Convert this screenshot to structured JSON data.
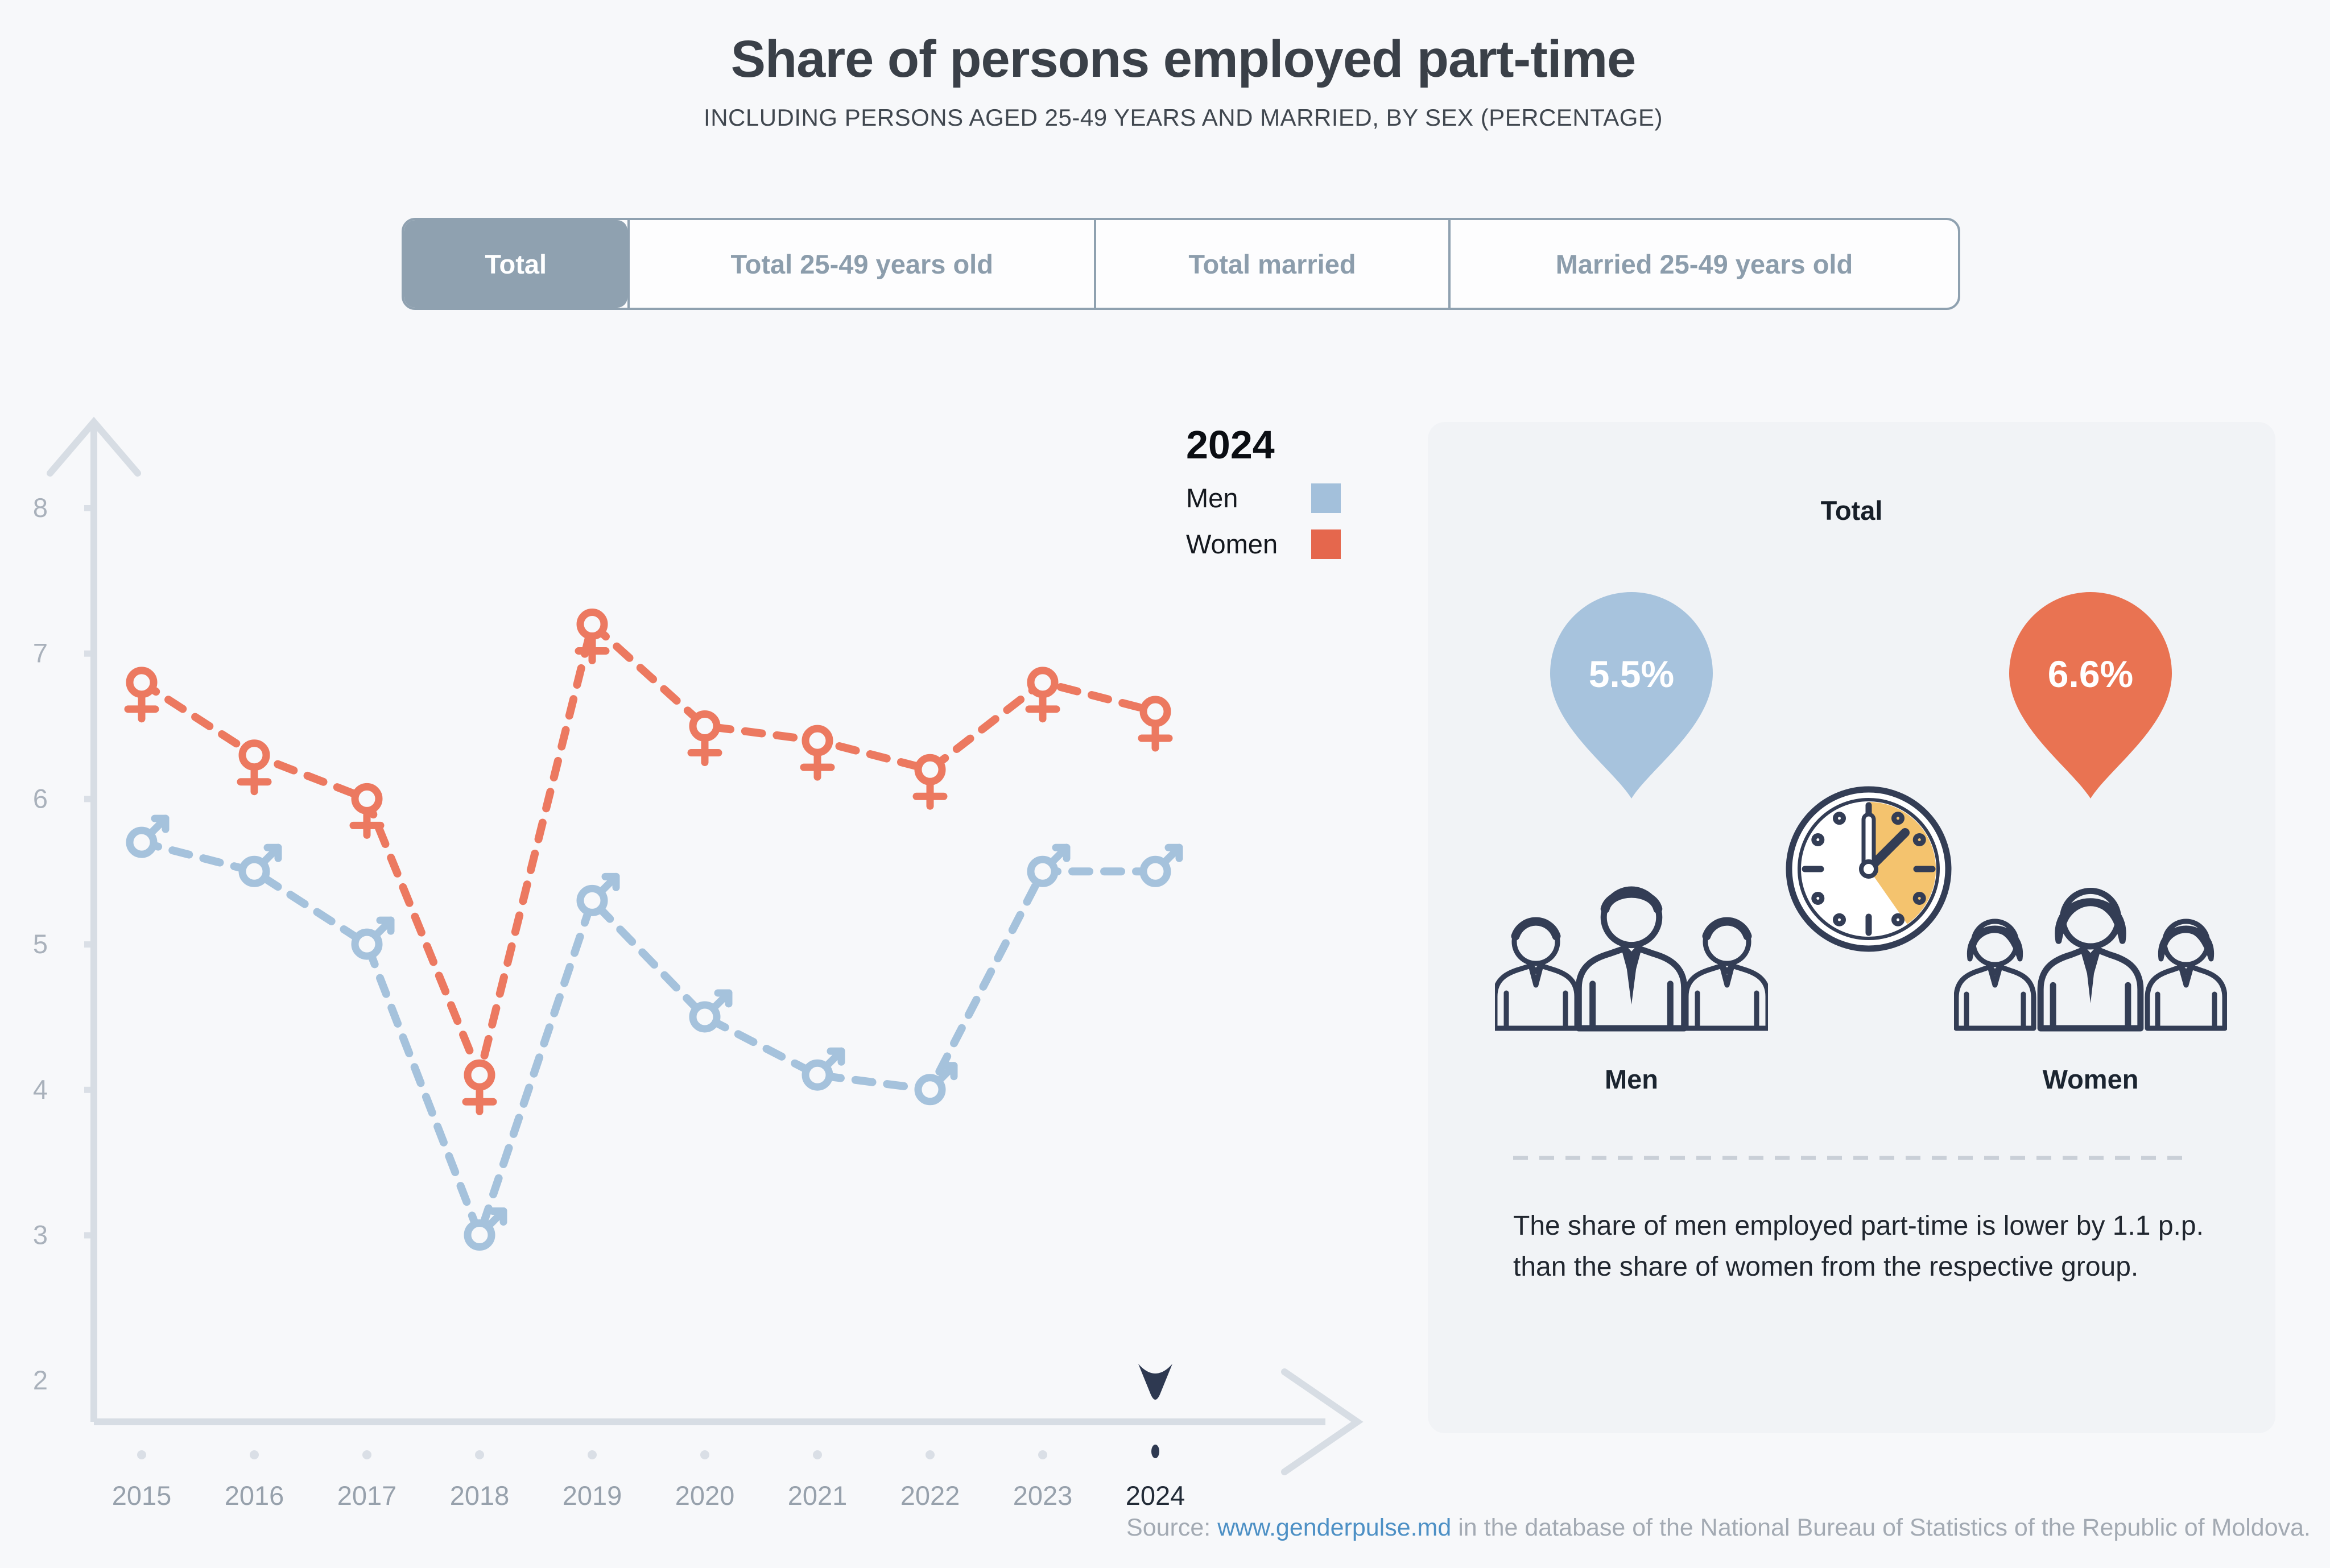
{
  "header": {
    "title": "Share of persons employed part-time",
    "subtitle": "INCLUDING PERSONS AGED 25-49 YEARS AND MARRIED, BY SEX (PERCENTAGE)"
  },
  "tabs": {
    "active_index": 0,
    "items": [
      {
        "label": "Total"
      },
      {
        "label": "Total 25-49 years old"
      },
      {
        "label": "Total married"
      },
      {
        "label": "Married 25-49 years old"
      }
    ]
  },
  "legend": {
    "year": "2024",
    "items": [
      {
        "label": "Men",
        "color": "#A3C0DB"
      },
      {
        "label": "Women",
        "color": "#E5674D"
      }
    ]
  },
  "chart_data": {
    "type": "line",
    "title": "Share of persons employed part-time, Total",
    "categories": [
      "2015",
      "2016",
      "2017",
      "2018",
      "2019",
      "2020",
      "2021",
      "2022",
      "2023",
      "2024"
    ],
    "selected_category": "2024",
    "series": [
      {
        "name": "Men",
        "marker": "male",
        "color": "#A5C2DC",
        "values": [
          5.7,
          5.5,
          5.0,
          3.0,
          5.3,
          4.5,
          4.1,
          4.0,
          5.5,
          5.5
        ]
      },
      {
        "name": "Women",
        "marker": "female",
        "color": "#EC7960",
        "values": [
          6.8,
          6.3,
          6.0,
          4.1,
          7.2,
          6.5,
          6.4,
          6.2,
          6.8,
          6.6
        ]
      }
    ],
    "ylim": [
      2,
      8
    ],
    "yticks": [
      8,
      7,
      6,
      5,
      4,
      3,
      2
    ],
    "grid": false,
    "line_style": "dashed",
    "legend_position": "top-right"
  },
  "panel": {
    "title": "Total",
    "stats": [
      {
        "group": "Men",
        "value": "5.5%",
        "color": "#A7C3DD"
      },
      {
        "group": "Women",
        "value": "6.6%",
        "color": "#E97352"
      }
    ],
    "note": "The share of men employed part-time is lower by 1.1 p.p. than the share of women from the respective group."
  },
  "source": {
    "label": "Source: ",
    "link": "www.genderpulse.md",
    "text": " in the database of the National Bureau of Statistics of the Republic of Moldova."
  },
  "colors": {
    "page_bg": "#F7F8FA",
    "panel_bg": "#F1F3F6",
    "axis": "#D7DDE4",
    "tick_label": "#A9B1BB",
    "year_label": "#97A1AC",
    "year_label_selected": "#222B37",
    "navy": "#333D55",
    "clock_wedge": "#F4C36E",
    "tab_accent": "#8FA1B0"
  }
}
